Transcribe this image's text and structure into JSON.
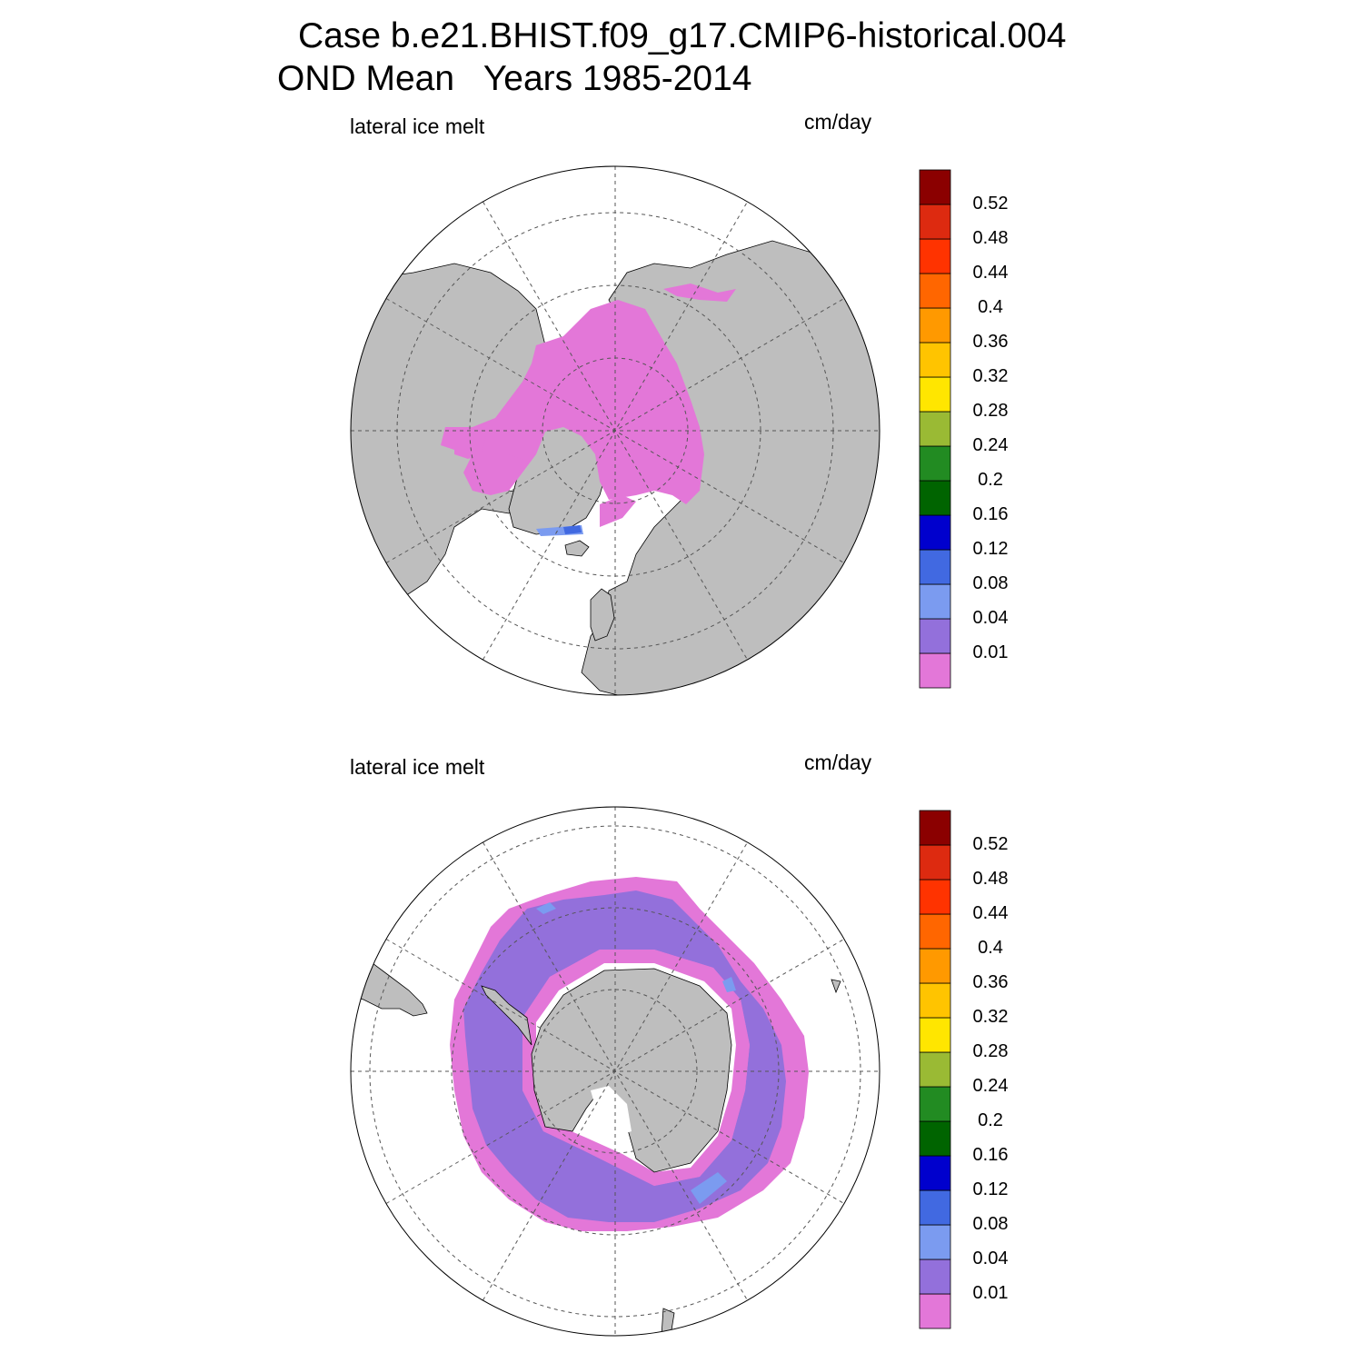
{
  "figure": {
    "title_line1": "Case b.e21.BHIST.f09_g17.CMIP6-historical.004",
    "title_line2": "OND Mean   Years 1985-2014"
  },
  "colors": {
    "land": "#bebebe",
    "grid": "#555555",
    "no_data": "#ffffff",
    "levels": [
      "#e377d8",
      "#9370db",
      "#7b9bf0",
      "#4169e1",
      "#0000cd",
      "#006400",
      "#228b22",
      "#9aba34",
      "#ffe600",
      "#ffc400",
      "#ff9900",
      "#ff6600",
      "#ff3300",
      "#dd2a10",
      "#8b0000"
    ]
  },
  "colorbar_labels": [
    "0.01",
    "0.04",
    "0.08",
    "0.12",
    "0.16",
    "0.2",
    "0.24",
    "0.28",
    "0.32",
    "0.36",
    "0.4",
    "0.44",
    "0.48",
    "0.52"
  ],
  "panels": [
    {
      "id": "north",
      "variable": "lateral ice melt",
      "units": "cm/day",
      "hemisphere": "Northern Hemisphere"
    },
    {
      "id": "south",
      "variable": "lateral ice melt",
      "units": "cm/day",
      "hemisphere": "Southern Hemisphere"
    }
  ]
}
